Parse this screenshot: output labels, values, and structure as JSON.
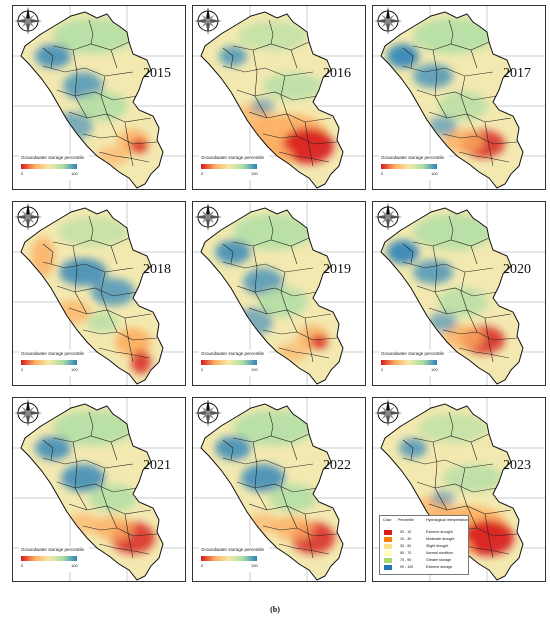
{
  "panels": [
    {
      "year": "2015",
      "variant": "a"
    },
    {
      "year": "2016",
      "variant": "b"
    },
    {
      "year": "2017",
      "variant": "c"
    },
    {
      "year": "2018",
      "variant": "d"
    },
    {
      "year": "2019",
      "variant": "a"
    },
    {
      "year": "2020",
      "variant": "c"
    },
    {
      "year": "2021",
      "variant": "e"
    },
    {
      "year": "2022",
      "variant": "e"
    },
    {
      "year": "2023",
      "variant": "b"
    }
  ],
  "legend": {
    "title": "Groundwater storage percentile",
    "min": "0",
    "max": "100",
    "colors": [
      "#d7191c",
      "#fdae61",
      "#f5e9a8",
      "#abdda4",
      "#2b83ba"
    ]
  },
  "categories": {
    "headers": [
      "Color",
      "Percentile",
      "Hydrological Interpretation"
    ],
    "rows": [
      {
        "color": "#e31a1c",
        "range": "00 - 10",
        "label": "Extreme drought"
      },
      {
        "color": "#ff7f00",
        "range": "10 - 30",
        "label": "Moderate drought"
      },
      {
        "color": "#fee08b",
        "range": "30 - 50",
        "label": "Slight drought"
      },
      {
        "color": "#ffffbf",
        "range": "50 - 70",
        "label": "Normal condition"
      },
      {
        "color": "#a6d96a",
        "range": "70 - 90",
        "label": "Greater storage"
      },
      {
        "color": "#1f78b4",
        "range": "90 - 100",
        "label": "Extreme storage"
      }
    ]
  },
  "caption": "(b)"
}
